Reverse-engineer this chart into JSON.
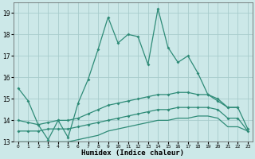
{
  "xlabel": "Humidex (Indice chaleur)",
  "x_values": [
    0,
    1,
    2,
    3,
    4,
    5,
    6,
    7,
    8,
    9,
    10,
    11,
    12,
    13,
    14,
    15,
    16,
    17,
    18,
    19,
    20,
    21,
    22,
    23
  ],
  "line1_y": [
    15.5,
    14.9,
    13.8,
    13.1,
    14.0,
    13.2,
    14.8,
    15.9,
    17.3,
    18.8,
    17.6,
    18.0,
    17.9,
    16.6,
    19.2,
    17.4,
    16.7,
    17.0,
    16.2,
    15.2,
    14.9,
    14.6,
    14.6,
    null
  ],
  "line2_y": [
    14.0,
    13.9,
    13.8,
    13.9,
    14.0,
    14.0,
    14.1,
    14.3,
    14.5,
    14.7,
    14.8,
    14.9,
    15.0,
    15.1,
    15.2,
    15.2,
    15.3,
    15.3,
    15.2,
    15.2,
    15.0,
    14.6,
    14.6,
    13.6
  ],
  "line3_y": [
    13.5,
    13.5,
    13.5,
    13.6,
    13.6,
    13.6,
    13.7,
    13.8,
    13.9,
    14.0,
    14.1,
    14.2,
    14.3,
    14.4,
    14.5,
    14.5,
    14.6,
    14.6,
    14.6,
    14.6,
    14.5,
    14.1,
    14.1,
    13.5
  ],
  "line4_y": [
    13.0,
    13.0,
    13.0,
    13.0,
    13.0,
    13.0,
    13.1,
    13.2,
    13.3,
    13.5,
    13.6,
    13.7,
    13.8,
    13.9,
    14.0,
    14.0,
    14.1,
    14.1,
    14.2,
    14.2,
    14.1,
    13.7,
    13.7,
    13.5
  ],
  "line_color": "#2e8b77",
  "bg_color": "#cce8e8",
  "grid_color": "#a8cccc",
  "ylim": [
    13,
    19.5
  ],
  "yticks": [
    13,
    14,
    15,
    16,
    17,
    18,
    19
  ]
}
